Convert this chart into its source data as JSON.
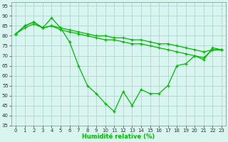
{
  "x": [
    0,
    1,
    2,
    3,
    4,
    5,
    6,
    7,
    8,
    9,
    10,
    11,
    12,
    13,
    14,
    15,
    16,
    17,
    18,
    19,
    20,
    21,
    22,
    23
  ],
  "line1": [
    81,
    84,
    86,
    84,
    89,
    84,
    77,
    65,
    55,
    51,
    46,
    42,
    52,
    45,
    53,
    51,
    51,
    55,
    65,
    66,
    70,
    68,
    74,
    73
  ],
  "line2": [
    81,
    85,
    87,
    84,
    85,
    84,
    83,
    82,
    81,
    80,
    80,
    79,
    79,
    78,
    78,
    77,
    76,
    76,
    75,
    74,
    73,
    72,
    73,
    73
  ],
  "line3": [
    81,
    85,
    87,
    84,
    85,
    83,
    82,
    81,
    80,
    79,
    78,
    78,
    77,
    76,
    76,
    75,
    74,
    73,
    72,
    71,
    70,
    69,
    73,
    73
  ],
  "line_color": "#00bb00",
  "bg_color": "#d8f5f0",
  "grid_color": "#aacccc",
  "xlabel": "Humidité relative (%)",
  "ylim": [
    35,
    97
  ],
  "xlim": [
    -0.5,
    23.5
  ],
  "yticks": [
    35,
    40,
    45,
    50,
    55,
    60,
    65,
    70,
    75,
    80,
    85,
    90,
    95
  ],
  "xticks": [
    0,
    1,
    2,
    3,
    4,
    5,
    6,
    7,
    8,
    9,
    10,
    11,
    12,
    13,
    14,
    15,
    16,
    17,
    18,
    19,
    20,
    21,
    22,
    23
  ]
}
